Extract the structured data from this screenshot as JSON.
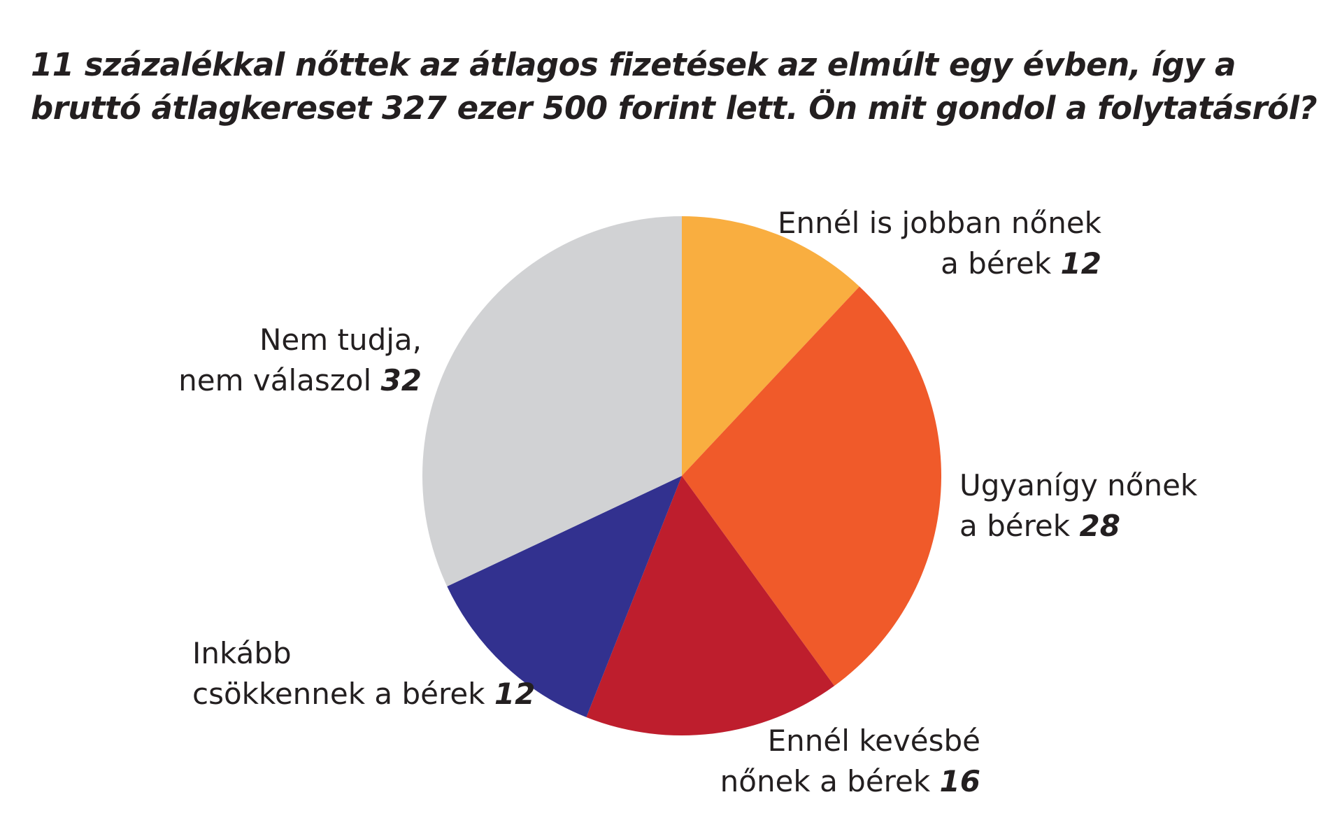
{
  "chart_data": {
    "type": "pie",
    "title": "11 százalékkal nőttek az átlagos fizetések az elmúlt egy évben, így a bruttó átlagkereset 327 ezer 500 forint lett. Ön mit gondol a folytatásról?",
    "categories": [
      "Ennél is jobban nőnek\na bérek",
      "Ugyanígy nőnek\na bérek",
      "Ennél kevésbé\nnőnek a bérek",
      "Inkább\ncsökkennek a bérek",
      "Nem tudja,\nnem válaszol"
    ],
    "values": [
      12,
      28,
      16,
      12,
      32
    ],
    "colors": [
      "#f9ae40",
      "#f05a2a",
      "#be1e2d",
      "#32318f",
      "#d1d2d4"
    ]
  }
}
